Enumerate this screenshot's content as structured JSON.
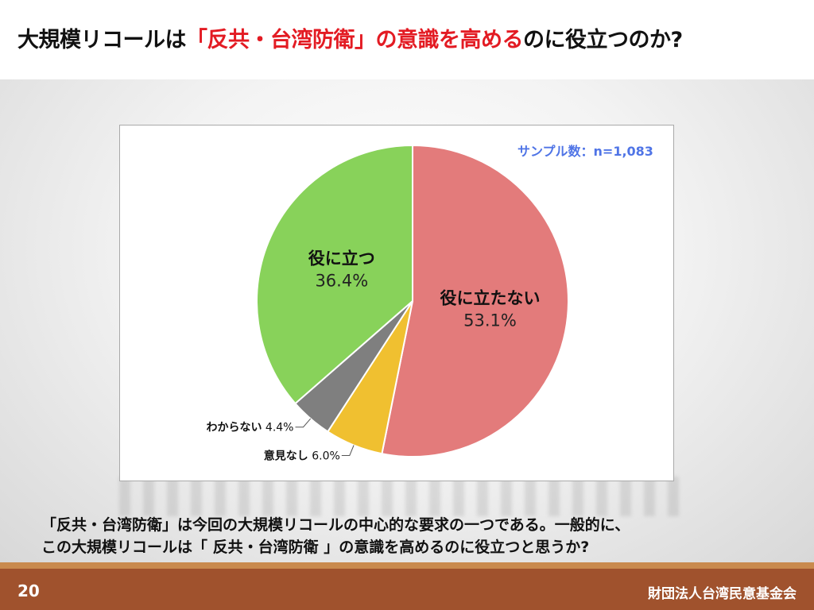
{
  "slide": {
    "title_part1": "大規模リコールは",
    "title_highlight": "「反共・台湾防衛」の意識を高める",
    "title_part2": "のに役立つのか?",
    "question_line1": "「反共・台湾防衛」は今回の大規模リコールの中心的な要求の一つである。一般的に、",
    "question_line2": "この大規模リコールは「 反共・台湾防衛 」の意識を高めるのに役立つと思うか?",
    "page_number": "20",
    "organization": "財団法人台湾民意基金会",
    "highlight_color": "#e31b23",
    "footer_color": "#a0522d"
  },
  "chart_data": {
    "type": "pie",
    "sample_size": "サンプル数：n=1,083",
    "start": "12 o'clock",
    "direction": "clockwise",
    "slices": [
      {
        "label": "役に立たない",
        "value": 53.1,
        "display": "53.1%",
        "color": "#e37b7b",
        "label_position": "inside"
      },
      {
        "label": "意見なし",
        "value": 6.0,
        "display": "6.0%",
        "color": "#f0c030",
        "label_position": "outside"
      },
      {
        "label": "わからない",
        "value": 4.4,
        "display": "4.4%",
        "color": "#7f7f7f",
        "label_position": "outside"
      },
      {
        "label": "役に立つ",
        "value": 36.4,
        "display": "36.4%",
        "color": "#88d25a",
        "label_position": "inside"
      }
    ]
  }
}
